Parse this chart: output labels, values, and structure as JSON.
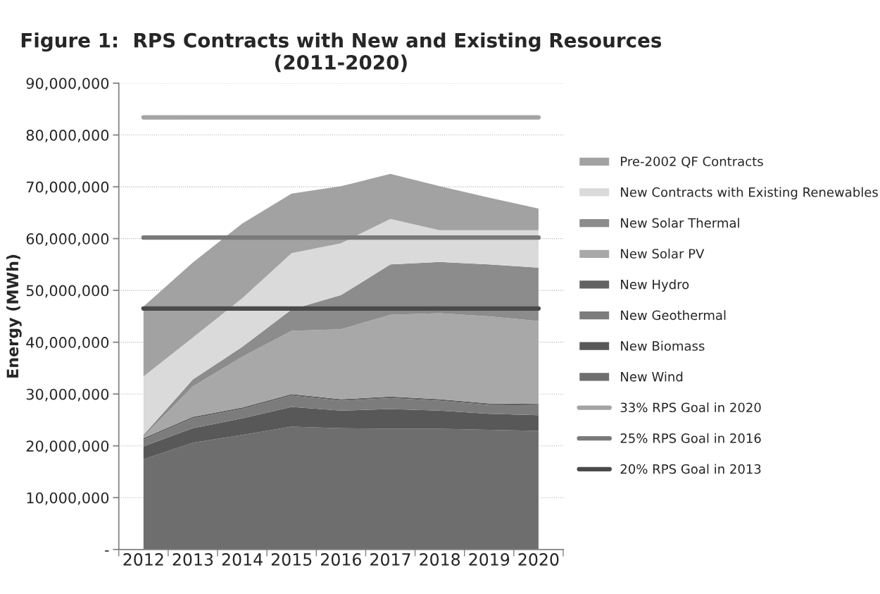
{
  "chart_data": {
    "type": "area",
    "stacked": true,
    "title": "Figure 1:  RPS Contracts with New and Existing Resources\n(2011-2020)",
    "ylabel": "Energy (MWh)",
    "categories": [
      "2012",
      "2013",
      "2014",
      "2015",
      "2016",
      "2017",
      "2018",
      "2019",
      "2020"
    ],
    "series": [
      {
        "name": "New Wind",
        "color": "#6e6e6e",
        "values": [
          17400000,
          20600000,
          22100000,
          23700000,
          23400000,
          23300000,
          23300000,
          23100000,
          22900000
        ]
      },
      {
        "name": "New Biomass",
        "color": "#585858",
        "values": [
          2500000,
          2800000,
          3200000,
          3800000,
          3400000,
          3800000,
          3500000,
          3100000,
          3000000
        ]
      },
      {
        "name": "New Geothermal",
        "color": "#7c7c7c",
        "values": [
          1300000,
          1900000,
          1800000,
          2200000,
          1900000,
          2100000,
          1900000,
          1700000,
          1900000
        ]
      },
      {
        "name": "New Hydro",
        "color": "#626262",
        "values": [
          300000,
          300000,
          300000,
          300000,
          300000,
          300000,
          300000,
          300000,
          300000
        ]
      },
      {
        "name": "New Solar PV",
        "color": "#a8a8a8",
        "values": [
          300000,
          5900000,
          9800000,
          12200000,
          13500000,
          15800000,
          16600000,
          16800000,
          16000000
        ]
      },
      {
        "name": "New Solar Thermal",
        "color": "#8c8c8c",
        "values": [
          300000,
          1300000,
          1900000,
          4100000,
          6600000,
          9700000,
          9900000,
          10000000,
          10300000
        ]
      },
      {
        "name": "New Contracts with Existing Renewables",
        "color": "#dadada",
        "values": [
          11300000,
          8100000,
          9400000,
          10900000,
          10000000,
          8800000,
          6100000,
          6600000,
          7200000
        ]
      },
      {
        "name": "Pre-2002 QF Contracts",
        "color": "#a2a2a2",
        "values": [
          13500000,
          14500000,
          14400000,
          11500000,
          11000000,
          8700000,
          8500000,
          6300000,
          4200000
        ]
      },
      {
        "name": "33% RPS Goal in 2020",
        "type": "line",
        "color": "#a4a4a4",
        "values": [
          83400000,
          83400000,
          83400000,
          83400000,
          83400000,
          83400000,
          83400000,
          83400000,
          83400000
        ]
      },
      {
        "name": "25% RPS Goal in 2016",
        "type": "line",
        "color": "#7a7a7a",
        "values": [
          60200000,
          60200000,
          60200000,
          60200000,
          60200000,
          60200000,
          60200000,
          60200000,
          60200000
        ]
      },
      {
        "name": "20% RPS Goal in 2013",
        "type": "line",
        "color": "#4a4a4a",
        "values": [
          46500000,
          46500000,
          46500000,
          46500000,
          46500000,
          46500000,
          46500000,
          46500000,
          46500000
        ]
      }
    ],
    "ylim": [
      0,
      90000000
    ],
    "yticks": [
      {
        "value": 0,
        "label": "-"
      },
      {
        "value": 10000000,
        "label": "10,000,000"
      },
      {
        "value": 20000000,
        "label": "20,000,000"
      },
      {
        "value": 30000000,
        "label": "30,000,000"
      },
      {
        "value": 40000000,
        "label": "40,000,000"
      },
      {
        "value": 50000000,
        "label": "50,000,000"
      },
      {
        "value": 60000000,
        "label": "60,000,000"
      },
      {
        "value": 70000000,
        "label": "70,000,000"
      },
      {
        "value": 80000000,
        "label": "80,000,000"
      },
      {
        "value": 90000000,
        "label": "90,000,000"
      }
    ],
    "grid": "y",
    "legend": "right",
    "marker": "none",
    "line_style": "solid"
  }
}
